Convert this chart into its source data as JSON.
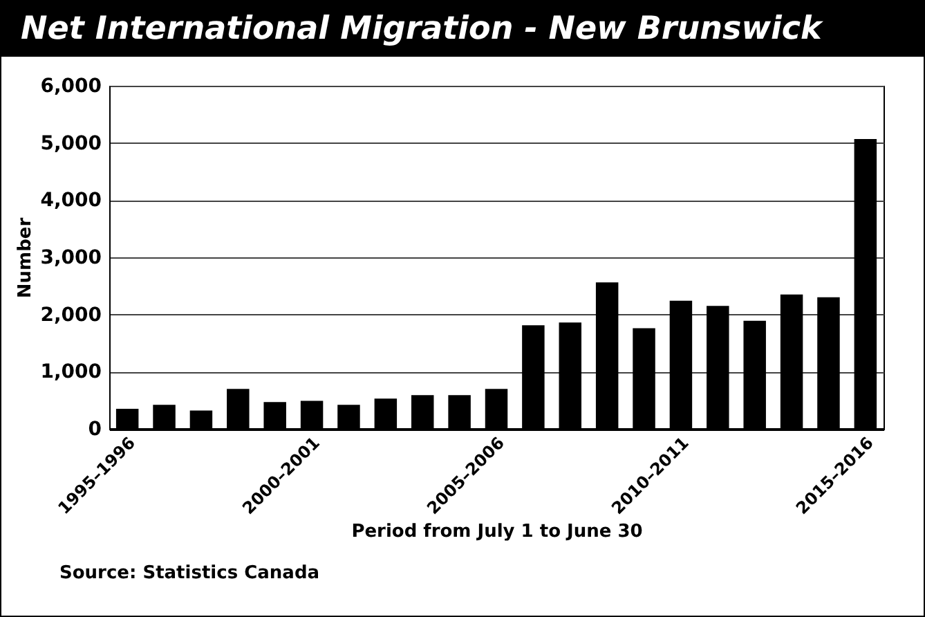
{
  "chart_data": {
    "type": "bar",
    "title": "Net International Migration - New Brunswick",
    "xlabel": "Period from July 1 to June 30",
    "ylabel": "Number",
    "categories": [
      "1995–1996",
      null,
      null,
      null,
      null,
      "2000–2001",
      null,
      null,
      null,
      null,
      "2005–2006",
      null,
      null,
      null,
      null,
      "2010–2011",
      null,
      null,
      null,
      null,
      "2015–2016"
    ],
    "values": [
      350,
      420,
      320,
      700,
      470,
      490,
      420,
      530,
      590,
      590,
      700,
      1810,
      1860,
      2560,
      1760,
      2240,
      2150,
      1890,
      2350,
      2300,
      5070
    ],
    "color": "#000000",
    "ylim": [
      0,
      6000
    ],
    "yticks": [
      0,
      {
        "value": 1000,
        "label": "1,000"
      },
      {
        "value": 2000,
        "label": "2,000"
      },
      {
        "value": 3000,
        "label": "3,000"
      },
      {
        "value": 4000,
        "label": "4,000"
      },
      {
        "value": 5000,
        "label": "5,000"
      },
      {
        "value": 6000,
        "label": "6,000"
      }
    ],
    "grid": "y",
    "annotations": [
      "Source: Statistics Canada"
    ]
  }
}
